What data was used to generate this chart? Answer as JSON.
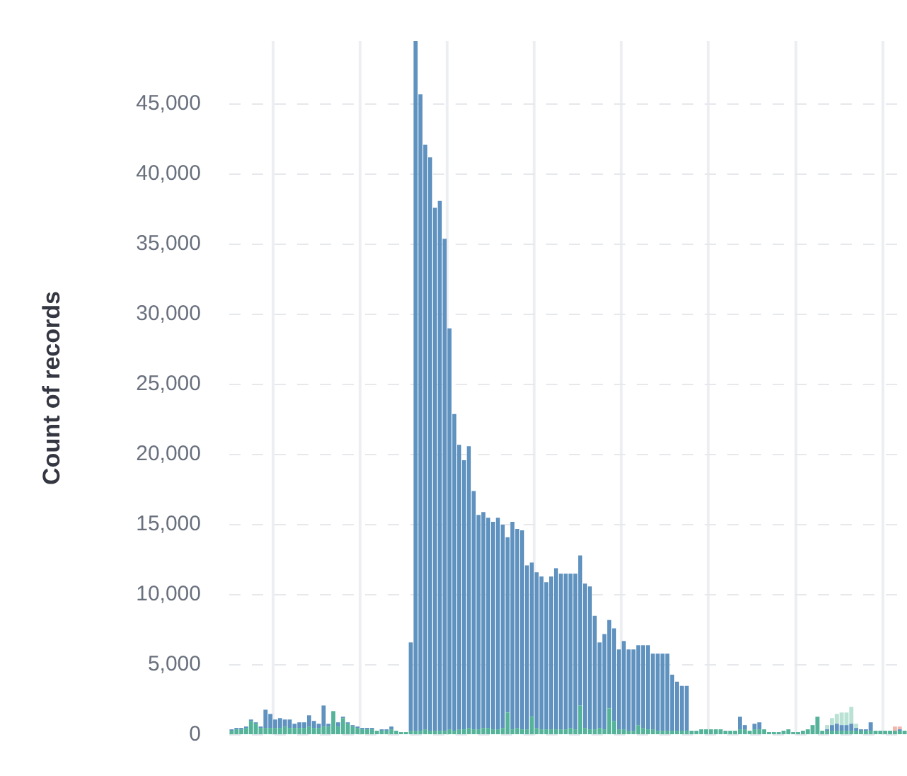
{
  "chart_data": {
    "type": "bar",
    "stacked": true,
    "ylabel": "Count of records",
    "categories": [
      null,
      null,
      null,
      null,
      null,
      null,
      null,
      null,
      null,
      null,
      null,
      null,
      null,
      null,
      null,
      null,
      null,
      null,
      null,
      null,
      null,
      null,
      null,
      null,
      null,
      null,
      null,
      null,
      null,
      null,
      null,
      null,
      null,
      null,
      null,
      null,
      null,
      null,
      null,
      null,
      null,
      null,
      null,
      null,
      null,
      null,
      null,
      null,
      null,
      null,
      null,
      null,
      null,
      null,
      null,
      null,
      null,
      null,
      null,
      null,
      null,
      null,
      null,
      null,
      null,
      null,
      null,
      null,
      null,
      null,
      null,
      null,
      null,
      null,
      null,
      null,
      null,
      null,
      null,
      null,
      null,
      null,
      null,
      null,
      null,
      null,
      null,
      null,
      null,
      null,
      null,
      null,
      null,
      null,
      null,
      null,
      null,
      null,
      null,
      null,
      null,
      null,
      null,
      null,
      null,
      null,
      null,
      null,
      null,
      null,
      null,
      null,
      null,
      null,
      null,
      null,
      null,
      null,
      null,
      null,
      null,
      null,
      null,
      null,
      null,
      null,
      null,
      null,
      null,
      null,
      null,
      null,
      null,
      null,
      null,
      null,
      null,
      null,
      null,
      null
    ],
    "series": [
      {
        "color": "#54b399",
        "values": [
          300,
          400,
          400,
          500,
          1000,
          800,
          500,
          500,
          500,
          500,
          500,
          600,
          500,
          500,
          500,
          500,
          600,
          500,
          500,
          600,
          600,
          1700,
          600,
          1200,
          800,
          600,
          500,
          400,
          400,
          400,
          300,
          300,
          300,
          400,
          300,
          200,
          200,
          300,
          300,
          300,
          400,
          300,
          300,
          300,
          300,
          400,
          300,
          400,
          400,
          500,
          400,
          400,
          500,
          500,
          400,
          400,
          500,
          1600,
          400,
          500,
          400,
          400,
          1300,
          500,
          400,
          400,
          400,
          400,
          400,
          400,
          500,
          400,
          2100,
          500,
          400,
          400,
          500,
          400,
          1900,
          1000,
          400,
          400,
          300,
          300,
          700,
          500,
          400,
          400,
          300,
          300,
          300,
          300,
          300,
          300,
          300,
          300,
          300,
          400,
          400,
          400,
          400,
          400,
          300,
          300,
          300,
          400,
          400,
          300,
          400,
          400,
          400,
          200,
          200,
          200,
          300,
          400,
          200,
          200,
          300,
          400,
          700,
          1300,
          300,
          300,
          300,
          300,
          300,
          300,
          300,
          300,
          300,
          300,
          300,
          300,
          300,
          300,
          300,
          300,
          300,
          300
        ]
      },
      {
        "color": "#6092c0",
        "values": [
          100,
          100,
          100,
          100,
          100,
          100,
          100,
          1300,
          1000,
          600,
          700,
          500,
          600,
          300,
          400,
          400,
          800,
          500,
          300,
          1500,
          200,
          0,
          300,
          100,
          100,
          100,
          100,
          100,
          100,
          100,
          0,
          100,
          100,
          200,
          0,
          0,
          0,
          6300,
          49200,
          45400,
          41700,
          40900,
          37300,
          37800,
          35100,
          28600,
          22600,
          20300,
          19200,
          20100,
          17000,
          15300,
          15400,
          15000,
          14800,
          15100,
          14500,
          12500,
          14800,
          14200,
          14200,
          11700,
          11000,
          11100,
          10900,
          10500,
          10900,
          11500,
          11100,
          11100,
          11000,
          11100,
          10700,
          10300,
          10200,
          8100,
          6100,
          6800,
          6300,
          6600,
          5700,
          6300,
          5800,
          5800,
          5700,
          5900,
          6000,
          5400,
          5500,
          5500,
          5500,
          4000,
          3500,
          3200,
          3200,
          0,
          0,
          0,
          0,
          0,
          0,
          0,
          0,
          0,
          0,
          900,
          300,
          0,
          400,
          500,
          0,
          0,
          0,
          0,
          0,
          0,
          0,
          0,
          0,
          0,
          0,
          0,
          0,
          100,
          400,
          500,
          400,
          400,
          500,
          200,
          100,
          100,
          600,
          0,
          0,
          0,
          0,
          0,
          100,
          0
        ]
      },
      {
        "color": "#b9e1d4",
        "values": [
          0,
          0,
          0,
          0,
          0,
          0,
          0,
          0,
          0,
          0,
          0,
          0,
          0,
          0,
          0,
          0,
          0,
          0,
          0,
          0,
          0,
          0,
          0,
          0,
          0,
          0,
          0,
          0,
          0,
          0,
          0,
          0,
          0,
          0,
          0,
          0,
          0,
          0,
          0,
          0,
          0,
          0,
          0,
          0,
          0,
          0,
          0,
          0,
          0,
          0,
          0,
          0,
          0,
          0,
          0,
          0,
          0,
          0,
          0,
          0,
          0,
          0,
          0,
          0,
          0,
          0,
          0,
          0,
          0,
          0,
          0,
          0,
          0,
          0,
          0,
          0,
          0,
          0,
          0,
          0,
          0,
          0,
          0,
          0,
          0,
          0,
          0,
          0,
          0,
          0,
          0,
          0,
          0,
          0,
          0,
          0,
          0,
          0,
          0,
          0,
          0,
          0,
          0,
          0,
          0,
          0,
          0,
          0,
          0,
          0,
          0,
          0,
          0,
          0,
          0,
          0,
          0,
          0,
          0,
          0,
          0,
          0,
          0,
          300,
          500,
          700,
          900,
          900,
          1200,
          300,
          0,
          0,
          0,
          0,
          0,
          0,
          0,
          0,
          0,
          0
        ]
      },
      {
        "color": "#f2b6ad",
        "values": [
          0,
          0,
          0,
          0,
          0,
          0,
          0,
          0,
          0,
          0,
          0,
          0,
          0,
          0,
          0,
          0,
          0,
          0,
          0,
          0,
          0,
          0,
          0,
          0,
          0,
          0,
          0,
          0,
          0,
          0,
          0,
          0,
          0,
          0,
          0,
          0,
          0,
          0,
          0,
          0,
          0,
          0,
          0,
          0,
          0,
          0,
          0,
          0,
          0,
          0,
          0,
          0,
          0,
          0,
          0,
          0,
          0,
          0,
          0,
          0,
          0,
          0,
          0,
          0,
          0,
          0,
          0,
          0,
          0,
          0,
          0,
          0,
          0,
          0,
          0,
          0,
          0,
          0,
          0,
          0,
          0,
          0,
          0,
          0,
          0,
          0,
          0,
          0,
          0,
          0,
          0,
          0,
          0,
          0,
          0,
          0,
          0,
          0,
          0,
          0,
          0,
          0,
          0,
          0,
          0,
          0,
          0,
          0,
          0,
          0,
          0,
          0,
          0,
          0,
          0,
          0,
          0,
          0,
          0,
          0,
          0,
          0,
          0,
          0,
          0,
          0,
          0,
          0,
          0,
          0,
          0,
          0,
          0,
          0,
          0,
          0,
          0,
          300,
          200,
          0
        ]
      }
    ],
    "ylim": [
      0,
      49500
    ],
    "yticks": [
      0,
      {
        "value": 5000,
        "label": "5,000"
      },
      {
        "value": 10000,
        "label": "10,000"
      },
      {
        "value": 15000,
        "label": "15,000"
      },
      {
        "value": 20000,
        "label": "20,000"
      },
      {
        "value": 25000,
        "label": "25,000"
      },
      {
        "value": 30000,
        "label": "30,000"
      },
      {
        "value": 35000,
        "label": "35,000"
      },
      {
        "value": 40000,
        "label": "40,000"
      },
      {
        "value": 45000,
        "label": "45,000"
      }
    ],
    "grid": true,
    "tick_labels": "y"
  }
}
